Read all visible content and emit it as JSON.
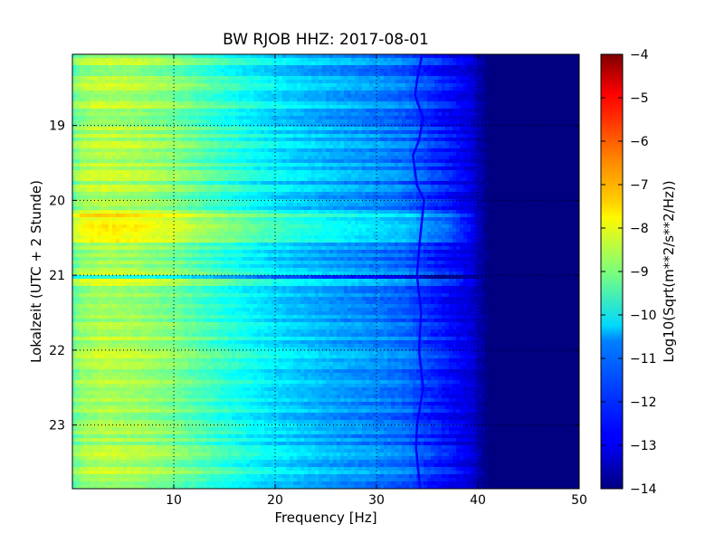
{
  "chart_data": {
    "type": "heatmap",
    "title": "BW RJOB HHZ: 2017-08-01",
    "xlabel": "Frequency [Hz]",
    "ylabel": "Lokalzeit (UTC + 2 Stunde)",
    "xlim": [
      0,
      50
    ],
    "ylim": [
      18.05,
      23.85
    ],
    "y_inverted": true,
    "x_ticks": [
      10,
      20,
      30,
      40,
      50
    ],
    "y_ticks": [
      19,
      20,
      21,
      22,
      23
    ],
    "grid": true,
    "colormap": "jet",
    "colorbar": {
      "label": "Log10(Sqrt(m**2/s**2/Hz))",
      "range": [
        -14,
        -4
      ],
      "ticks": [
        -4,
        -5,
        -6,
        -7,
        -8,
        -9,
        -10,
        -11,
        -12,
        -13,
        -14
      ]
    },
    "frequency_profile": {
      "freq": [
        0,
        1,
        3,
        6,
        10,
        15,
        20,
        25,
        30,
        33,
        35,
        37,
        39,
        40,
        41,
        50
      ],
      "level": [
        -9.2,
        -8.7,
        -8.5,
        -8.6,
        -9.0,
        -9.8,
        -10.5,
        -11.0,
        -11.4,
        -11.7,
        -12.2,
        -12.6,
        -13.0,
        -13.4,
        -14.0,
        -14.0
      ]
    },
    "noise_floor": -14,
    "noise_floor_from_hz": 41,
    "loud_periods": [
      {
        "start": 20.15,
        "end": 20.55,
        "delta": 0.8
      },
      {
        "start": 20.98,
        "end": 21.05,
        "delta": -1.2
      },
      {
        "start": 21.05,
        "end": 21.12,
        "delta": 0.5
      }
    ],
    "tonal_line": {
      "hz": [
        34.5,
        34.0,
        33.8,
        34.6,
        34.2,
        33.6,
        34.0,
        34.7,
        34.3,
        34.0,
        34.4,
        34.2,
        34.6,
        34.0,
        33.9,
        34.3
      ],
      "time": [
        18.05,
        18.4,
        18.6,
        18.9,
        19.2,
        19.4,
        19.8,
        20.0,
        20.5,
        21.0,
        21.5,
        22.0,
        22.5,
        23.0,
        23.3,
        23.85
      ],
      "level": -12.8
    }
  }
}
